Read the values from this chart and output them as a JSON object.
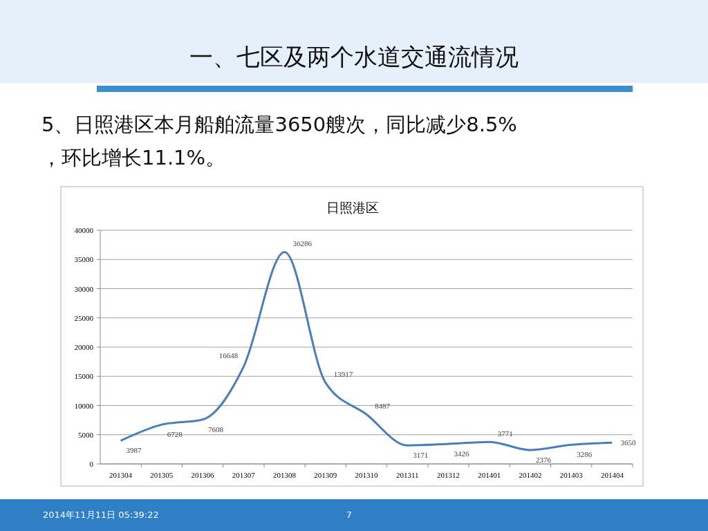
{
  "chart_data": {
    "type": "line",
    "title": "日照港区",
    "annotations": [
      "一、七区及两个水道交通流情况",
      "5、日照港区本月船舶流量3650艘次，同比减少8.5%，环比增长11.1%。",
      "2014年11月11日  05:39:22",
      "7"
    ],
    "categories": [
      "201304",
      "201305",
      "201306",
      "201307",
      "201308",
      "201309",
      "201310",
      "201311",
      "201312",
      "201401",
      "201402",
      "201403",
      "201404"
    ],
    "series": [
      {
        "color": "#4a7ebb",
        "values": [
          3987,
          6728,
          7608,
          16648,
          36286,
          13917,
          8487,
          3171,
          3426,
          3771,
          2376,
          3286,
          3650
        ]
      }
    ],
    "ylim": [
      0,
      40000
    ],
    "yticks": [
      0,
      5000,
      10000,
      15000,
      20000,
      25000,
      30000,
      35000,
      40000
    ],
    "grid": "y",
    "data_labels": true,
    "marker": "none"
  }
}
